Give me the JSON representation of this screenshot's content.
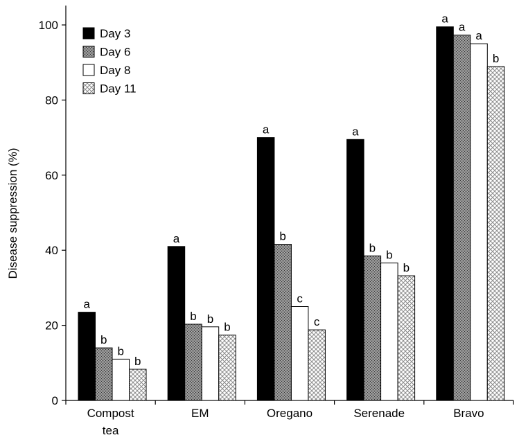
{
  "chart_data": {
    "type": "bar",
    "title": "",
    "xlabel": "",
    "ylabel": "Disease suppression (%)",
    "ylim": [
      0,
      100
    ],
    "yticks": [
      0,
      20,
      40,
      60,
      80,
      100
    ],
    "categories": [
      [
        "Compost",
        "tea"
      ],
      [
        "EM"
      ],
      [
        "Oregano"
      ],
      [
        "Serenade"
      ],
      [
        "Bravo"
      ]
    ],
    "legend_position": "top-left",
    "grid": false,
    "series": [
      {
        "name": "Day 3",
        "fill": "solid-black",
        "values": [
          23.5,
          41,
          70,
          69.5,
          99.5
        ],
        "letters": [
          "a",
          "a",
          "a",
          "a",
          "a"
        ]
      },
      {
        "name": "Day 6",
        "fill": "dark-gray-stipple",
        "values": [
          14,
          20.3,
          41.6,
          38.5,
          97.3
        ],
        "letters": [
          "b",
          "b",
          "b",
          "b",
          "a"
        ]
      },
      {
        "name": "Day 8",
        "fill": "white",
        "values": [
          11,
          19.6,
          25,
          36.6,
          95
        ],
        "letters": [
          "b",
          "b",
          "c",
          "b",
          "a"
        ]
      },
      {
        "name": "Day 11",
        "fill": "light-crosshatch",
        "values": [
          8.3,
          17.4,
          18.8,
          33.2,
          88.9
        ],
        "letters": [
          "b",
          "b",
          "c",
          "b",
          "b"
        ]
      }
    ]
  }
}
